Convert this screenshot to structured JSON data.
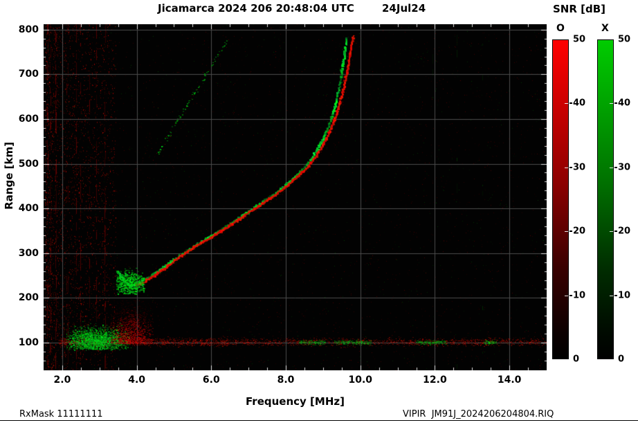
{
  "header": {
    "title": "Jicamarca 2024 206 20:48:04 UTC",
    "date": "24Jul24"
  },
  "axes": {
    "x_title": "Frequency [MHz]",
    "y_title": "Range [km]"
  },
  "colorbar": {
    "title": "SNR [dB]",
    "o_label": "O",
    "x_label": "X",
    "min": 0,
    "max": 50,
    "ticks": [
      0,
      10,
      20,
      30,
      40,
      50
    ],
    "tick_labels": [
      "0",
      "10",
      "20",
      "30",
      "40",
      "50"
    ],
    "o_color": "#ff0000",
    "x_color": "#00cc00"
  },
  "footer": {
    "left": "RxMask 11111111",
    "right": "VIPIR  JM91J_2024206204804.RIQ"
  },
  "chart_data": {
    "type": "heatmap",
    "subtype": "ionogram",
    "title": "Jicamarca 2024 206 20:48:04 UTC",
    "date": "24Jul24",
    "xlabel": "Frequency [MHz]",
    "ylabel": "Range [km]",
    "xlim": [
      1.5,
      15.0
    ],
    "ylim": [
      38,
      812
    ],
    "xticks": [
      2.0,
      4.0,
      6.0,
      8.0,
      10.0,
      12.0,
      14.0
    ],
    "xtick_labels": [
      "2.0",
      "4.0",
      "6.0",
      "8.0",
      "10.0",
      "12.0",
      "14.0"
    ],
    "yticks": [
      100,
      200,
      300,
      400,
      500,
      600,
      700,
      800
    ],
    "ytick_labels": [
      "100",
      "200",
      "300",
      "400",
      "500",
      "600",
      "700",
      "800"
    ],
    "grid": true,
    "grid_color": "#4d4d4d",
    "background": "#020202",
    "snr_scale_db": [
      0,
      50
    ],
    "series": [
      {
        "name": "O-mode main echo trace",
        "mode": "O",
        "color": "#ff1a00",
        "units": [
          "MHz",
          "km"
        ],
        "points": [
          [
            3.98,
            228
          ],
          [
            4.1,
            230
          ],
          [
            4.25,
            236
          ],
          [
            4.45,
            247
          ],
          [
            4.7,
            261
          ],
          [
            5.0,
            280
          ],
          [
            5.3,
            298
          ],
          [
            5.6,
            315
          ],
          [
            5.9,
            329
          ],
          [
            6.2,
            344
          ],
          [
            6.5,
            360
          ],
          [
            6.8,
            377
          ],
          [
            7.1,
            394
          ],
          [
            7.4,
            411
          ],
          [
            7.7,
            428
          ],
          [
            8.0,
            446
          ],
          [
            8.3,
            468
          ],
          [
            8.6,
            492
          ],
          [
            8.85,
            518
          ],
          [
            9.05,
            546
          ],
          [
            9.22,
            577
          ],
          [
            9.37,
            610
          ],
          [
            9.5,
            645
          ],
          [
            9.6,
            681
          ],
          [
            9.68,
            716
          ],
          [
            9.75,
            749
          ],
          [
            9.8,
            772
          ],
          [
            9.83,
            785
          ]
        ]
      },
      {
        "name": "X-mode main echo trace",
        "mode": "X",
        "color": "#00cc22",
        "units": [
          "MHz",
          "km"
        ],
        "points": [
          [
            3.52,
            258
          ],
          [
            3.6,
            245
          ],
          [
            3.7,
            235
          ],
          [
            3.82,
            228
          ],
          [
            3.95,
            227
          ],
          [
            4.1,
            232
          ],
          [
            4.3,
            243
          ],
          [
            4.55,
            257
          ],
          [
            4.85,
            274
          ],
          [
            5.15,
            292
          ],
          [
            5.45,
            309
          ],
          [
            5.75,
            324
          ],
          [
            6.05,
            339
          ],
          [
            6.35,
            354
          ],
          [
            6.65,
            371
          ],
          [
            6.95,
            388
          ],
          [
            7.25,
            405
          ],
          [
            7.55,
            422
          ],
          [
            7.85,
            440
          ],
          [
            8.15,
            460
          ],
          [
            8.45,
            484
          ],
          [
            8.7,
            509
          ],
          [
            8.9,
            536
          ],
          [
            9.08,
            566
          ],
          [
            9.23,
            599
          ],
          [
            9.35,
            634
          ],
          [
            9.45,
            670
          ],
          [
            9.52,
            706
          ],
          [
            9.58,
            740
          ],
          [
            9.62,
            766
          ],
          [
            9.64,
            780
          ]
        ]
      },
      {
        "name": "second-hop echo (faint green, dashed with red fuzz)",
        "mode": "X",
        "color": "#00b822",
        "units": [
          "MHz",
          "km"
        ],
        "points": [
          [
            4.55,
            522
          ],
          [
            4.8,
            556
          ],
          [
            5.05,
            590
          ],
          [
            5.3,
            624
          ],
          [
            5.55,
            658
          ],
          [
            5.8,
            692
          ],
          [
            6.05,
            726
          ],
          [
            6.25,
            754
          ],
          [
            6.4,
            772
          ],
          [
            6.5,
            785
          ]
        ]
      }
    ],
    "features": {
      "e_region": {
        "range_km": 100,
        "freq_span": [
          1.9,
          15.0
        ],
        "green_blob": {
          "freq": [
            2.1,
            3.85
          ],
          "range": [
            84,
            150
          ]
        },
        "red_plume": {
          "freq": [
            3.3,
            4.45
          ],
          "range": [
            95,
            195
          ]
        },
        "green_patches": [
          [
            8.35,
            9.05
          ],
          [
            9.3,
            10.3
          ],
          [
            11.5,
            12.3
          ],
          [
            13.3,
            13.65
          ]
        ]
      },
      "leading_edge_blob": {
        "freq": [
          3.45,
          4.2
        ],
        "range": [
          208,
          270
        ],
        "center_freq": 3.8,
        "center_range": 233
      },
      "noise": {
        "left_red_band_freq": [
          1.55,
          3.45
        ],
        "description": "sparse red speckle over full plot, denser vertical RFI stripes at low frequency, few faint green columns near 10.5-13.5 MHz"
      }
    }
  }
}
